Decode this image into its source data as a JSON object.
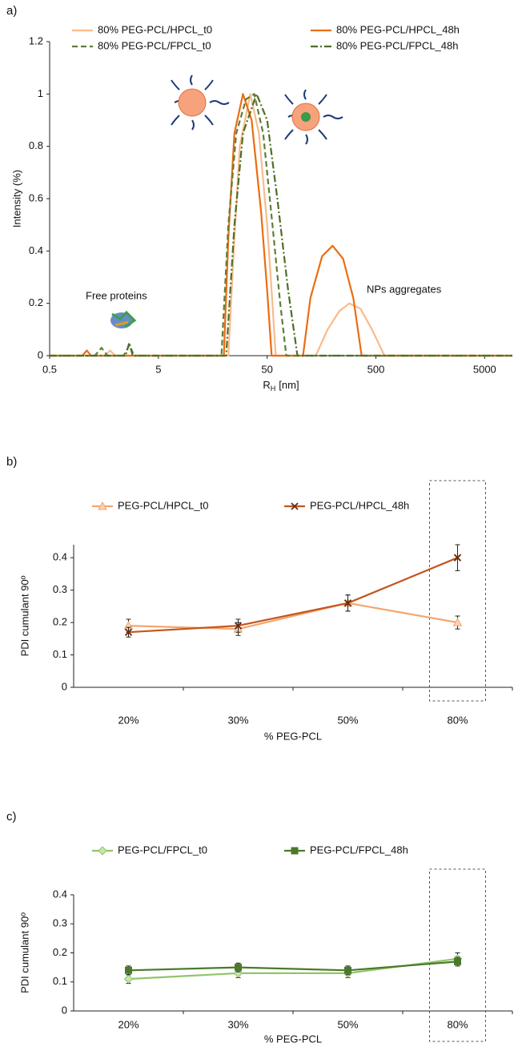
{
  "chart_data": [
    {
      "type": "line",
      "panel_label": "a)",
      "xlabel": {
        "base": "R",
        "subscript": "H",
        "unit": "[nm]"
      },
      "ylabel": "Intensity (%)",
      "xscale": "log",
      "xlim": [
        0.5,
        9000
      ],
      "xticks": [
        0.5,
        5,
        50,
        500,
        5000
      ],
      "ylim": [
        0,
        1.2
      ],
      "yticks": [
        0,
        0.2,
        0.4,
        0.6,
        0.8,
        1,
        1.2
      ],
      "annotations": [
        "Free proteins",
        "NPs aggregates"
      ],
      "series": [
        {
          "name": "80% PEG-PCL/HPCL_t0",
          "color": "#f9bb8c",
          "dash": "solid",
          "x": [
            0.5,
            1.6,
            1.8,
            2.0,
            22,
            25,
            28,
            35,
            42,
            50,
            56,
            60,
            140,
            180,
            230,
            285,
            360,
            460,
            600,
            9000
          ],
          "values": [
            0,
            0,
            0.02,
            0,
            0,
            0.45,
            0.8,
            1,
            0.85,
            0.5,
            0.2,
            0,
            0,
            0.1,
            0.17,
            0.2,
            0.18,
            0.1,
            0,
            0
          ]
        },
        {
          "name": "80% PEG-PCL/HPCL_48h",
          "color": "#ec6c12",
          "dash": "solid",
          "x": [
            0.5,
            1.0,
            1.1,
            1.2,
            20,
            22,
            25,
            30,
            36,
            44,
            50,
            55,
            107,
            125,
            160,
            200,
            250,
            310,
            370,
            9000
          ],
          "values": [
            0,
            0,
            0.02,
            0,
            0,
            0.45,
            0.85,
            1,
            0.9,
            0.55,
            0.25,
            0,
            0,
            0.22,
            0.38,
            0.42,
            0.37,
            0.22,
            0,
            0
          ]
        },
        {
          "name": "80% PEG-PCL/FPCL_t0",
          "color": "#5f7f35",
          "dash": "dashed",
          "x": [
            0.5,
            1.3,
            1.5,
            1.7,
            2.4,
            2.7,
            3.0,
            19,
            22,
            26,
            32,
            38,
            46,
            56,
            66,
            75,
            9000
          ],
          "values": [
            0,
            0,
            0.03,
            0,
            0,
            0.04,
            0,
            0,
            0.5,
            0.85,
            0.98,
            1,
            0.85,
            0.5,
            0.2,
            0,
            0
          ]
        },
        {
          "name": "80% PEG-PCL/FPCL_48h",
          "color": "#4e6e26",
          "dash": "dashdot",
          "x": [
            0.5,
            2.5,
            2.7,
            2.9,
            21,
            25,
            30,
            40,
            50,
            62,
            78,
            95,
            9000
          ],
          "values": [
            0,
            0,
            0.05,
            0,
            0,
            0.5,
            0.85,
            1,
            0.9,
            0.6,
            0.25,
            0,
            0
          ]
        }
      ]
    },
    {
      "type": "line",
      "panel_label": "b)",
      "xlabel": "% PEG-PCL",
      "ylabel": "PDI cumulant 90º",
      "categories": [
        "20%",
        "30%",
        "50%",
        "80%"
      ],
      "ylim": [
        0,
        0.44
      ],
      "yticks": [
        0,
        0.1,
        0.2,
        0.3,
        0.4
      ],
      "series": [
        {
          "name": "PEG-PCL/HPCL_t0",
          "color": "#f5a56c",
          "marker": "triangle",
          "values": [
            0.19,
            0.18,
            0.26,
            0.2
          ],
          "errors": [
            0.02,
            0.02,
            0.025,
            0.02
          ]
        },
        {
          "name": "PEG-PCL/HPCL_48h",
          "color": "#c4561c",
          "marker": "x",
          "values": [
            0.17,
            0.19,
            0.26,
            0.4
          ],
          "errors": [
            0.015,
            0.02,
            0.025,
            0.04
          ]
        }
      ]
    },
    {
      "type": "line",
      "panel_label": "c)",
      "xlabel": "% PEG-PCL",
      "ylabel": "PDI cumulant 90º",
      "categories": [
        "20%",
        "30%",
        "50%",
        "80%"
      ],
      "ylim": [
        0,
        0.4
      ],
      "yticks": [
        0,
        0.1,
        0.2,
        0.3,
        0.4
      ],
      "series": [
        {
          "name": "PEG-PCL/FPCL_t0",
          "color": "#92c46c",
          "marker": "diamond",
          "values": [
            0.11,
            0.13,
            0.13,
            0.18
          ],
          "errors": [
            0.015,
            0.015,
            0.015,
            0.02
          ]
        },
        {
          "name": "PEG-PCL/FPCL_48h",
          "color": "#4a7a2a",
          "marker": "square",
          "values": [
            0.14,
            0.15,
            0.14,
            0.17
          ],
          "errors": [
            0.015,
            0.015,
            0.015,
            0.015
          ]
        }
      ]
    }
  ]
}
